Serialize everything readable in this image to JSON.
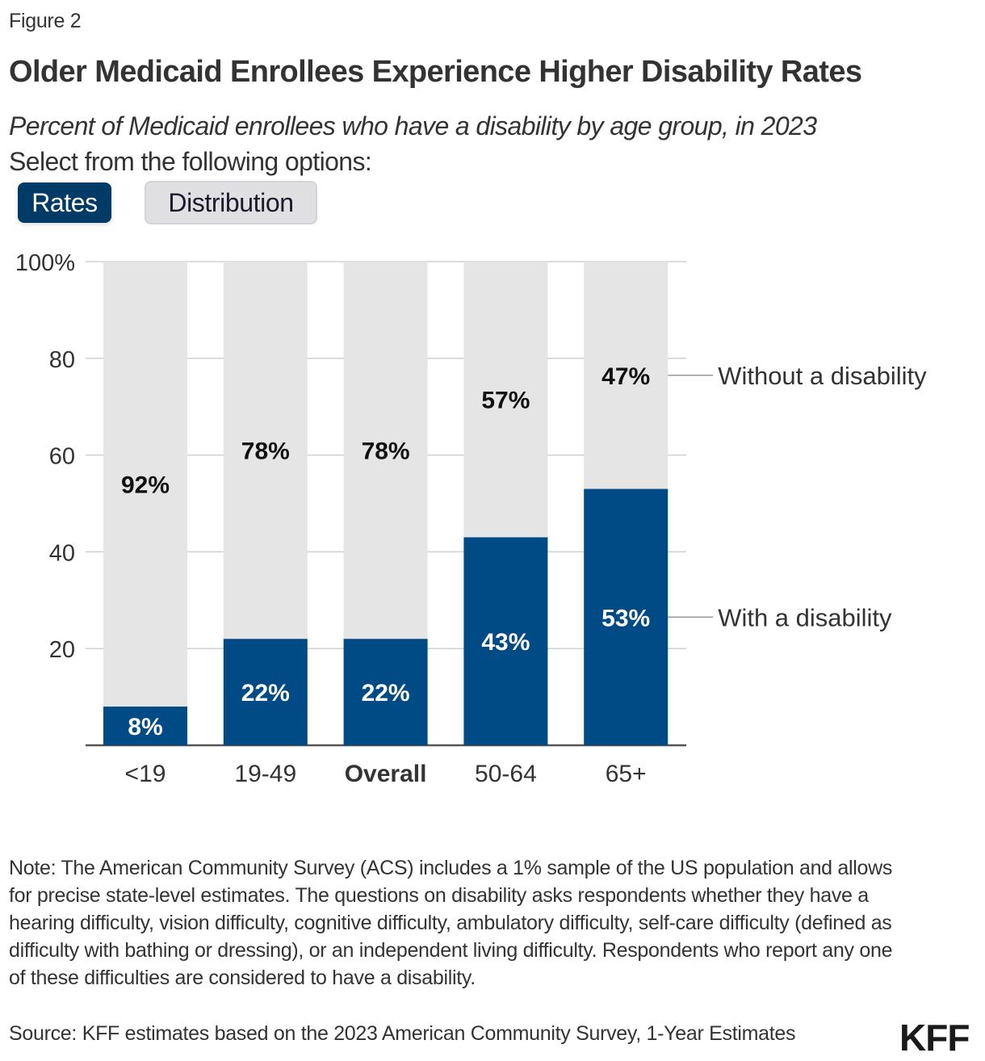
{
  "figure_label": "Figure 2",
  "title": "Older Medicaid Enrollees Experience Higher Disability Rates",
  "subtitle": "Percent of Medicaid enrollees who have a disability by age group, in 2023",
  "select_label": "Select from the following options:",
  "toggles": [
    {
      "label": "Rates",
      "active": true
    },
    {
      "label": "Distribution",
      "active": false
    }
  ],
  "colors": {
    "with_disability": "#004a86",
    "without_disability": "#e5e5e5",
    "active_toggle": "#003a66",
    "text": "#333333"
  },
  "chart_data": {
    "type": "bar",
    "stacked": true,
    "categories": [
      "<19",
      "19-49",
      "Overall",
      "50-64",
      "65+"
    ],
    "bold_categories": [
      "Overall"
    ],
    "series": [
      {
        "name": "With a disability",
        "values": [
          8,
          22,
          22,
          43,
          53
        ],
        "labels": [
          "8%",
          "22%",
          "22%",
          "43%",
          "53%"
        ],
        "color": "#004a86"
      },
      {
        "name": "Without a disability",
        "values": [
          92,
          78,
          78,
          57,
          47
        ],
        "labels": [
          "92%",
          "78%",
          "78%",
          "57%",
          "47%"
        ],
        "color": "#e5e5e5"
      }
    ],
    "title": "Older Medicaid Enrollees Experience Higher Disability Rates",
    "xlabel": "",
    "ylabel": "",
    "ylim": [
      0,
      100
    ],
    "yticks": [
      20,
      40,
      60,
      80,
      100
    ],
    "ytick_labels": [
      "20",
      "40",
      "60",
      "80",
      "100%"
    ],
    "grid": true,
    "legend": "direct labels on the right of the last bar"
  },
  "note": "Note: The American Community Survey (ACS) includes a 1% sample of the US population and allows for precise state-level estimates. The questions on disability asks respondents whether they have a hearing difficulty, vision difficulty, cognitive difficulty, ambulatory difficulty, self-care difficulty (defined as difficulty with bathing or dressing), or an independent living difficulty. Respondents who report any one of these difficulties are considered to have a disability.",
  "source": "Source: KFF estimates based on the 2023 American Community Survey, 1-Year Estimates",
  "logo": "KFF"
}
